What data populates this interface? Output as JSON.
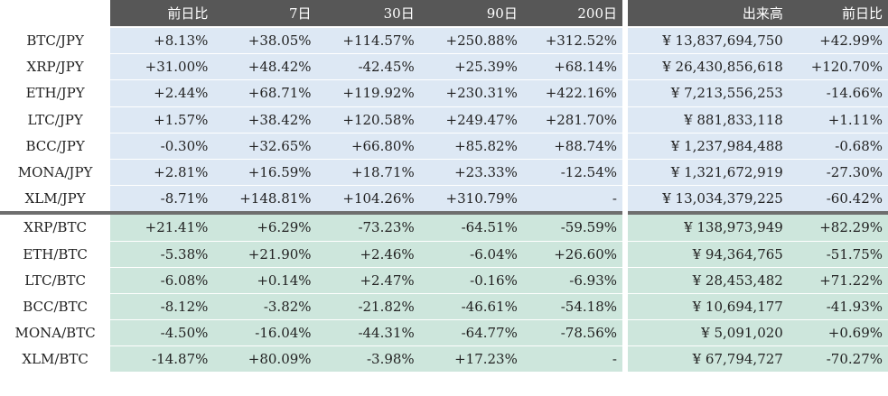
{
  "table": {
    "headers": [
      "前日比",
      "7日",
      "30日",
      "90日",
      "200日",
      "出来高",
      "前日比"
    ],
    "jpy_rows": [
      {
        "pair": "BTC/JPY",
        "d1": "+8.13%",
        "d7": "+38.05%",
        "d30": "+114.57%",
        "d90": "+250.88%",
        "d200": "+312.52%",
        "volume": "¥ 13,837,694,750",
        "vol_change": "+42.99%"
      },
      {
        "pair": "XRP/JPY",
        "d1": "+31.00%",
        "d7": "+48.42%",
        "d30": "-42.45%",
        "d90": "+25.39%",
        "d200": "+68.14%",
        "volume": "¥ 26,430,856,618",
        "vol_change": "+120.70%"
      },
      {
        "pair": "ETH/JPY",
        "d1": "+2.44%",
        "d7": "+68.71%",
        "d30": "+119.92%",
        "d90": "+230.31%",
        "d200": "+422.16%",
        "volume": "¥ 7,213,556,253",
        "vol_change": "-14.66%"
      },
      {
        "pair": "LTC/JPY",
        "d1": "+1.57%",
        "d7": "+38.42%",
        "d30": "+120.58%",
        "d90": "+249.47%",
        "d200": "+281.70%",
        "volume": "¥ 881,833,118",
        "vol_change": "+1.11%"
      },
      {
        "pair": "BCC/JPY",
        "d1": "-0.30%",
        "d7": "+32.65%",
        "d30": "+66.80%",
        "d90": "+85.82%",
        "d200": "+88.74%",
        "volume": "¥ 1,237,984,488",
        "vol_change": "-0.68%"
      },
      {
        "pair": "MONA/JPY",
        "d1": "+2.81%",
        "d7": "+16.59%",
        "d30": "+18.71%",
        "d90": "+23.33%",
        "d200": "-12.54%",
        "volume": "¥ 1,321,672,919",
        "vol_change": "-27.30%"
      },
      {
        "pair": "XLM/JPY",
        "d1": "-8.71%",
        "d7": "+148.81%",
        "d30": "+104.26%",
        "d90": "+310.79%",
        "d200": "-",
        "volume": "¥ 13,034,379,225",
        "vol_change": "-60.42%"
      }
    ],
    "btc_rows": [
      {
        "pair": "XRP/BTC",
        "d1": "+21.41%",
        "d7": "+6.29%",
        "d30": "-73.23%",
        "d90": "-64.51%",
        "d200": "-59.59%",
        "volume": "¥ 138,973,949",
        "vol_change": "+82.29%"
      },
      {
        "pair": "ETH/BTC",
        "d1": "-5.38%",
        "d7": "+21.90%",
        "d30": "+2.46%",
        "d90": "-6.04%",
        "d200": "+26.60%",
        "volume": "¥ 94,364,765",
        "vol_change": "-51.75%"
      },
      {
        "pair": "LTC/BTC",
        "d1": "-6.08%",
        "d7": "+0.14%",
        "d30": "+2.47%",
        "d90": "-0.16%",
        "d200": "-6.93%",
        "volume": "¥ 28,453,482",
        "vol_change": "+71.22%"
      },
      {
        "pair": "BCC/BTC",
        "d1": "-8.12%",
        "d7": "-3.82%",
        "d30": "-21.82%",
        "d90": "-46.61%",
        "d200": "-54.18%",
        "volume": "¥ 10,694,177",
        "vol_change": "-41.93%"
      },
      {
        "pair": "MONA/BTC",
        "d1": "-4.50%",
        "d7": "-16.04%",
        "d30": "-44.31%",
        "d90": "-64.77%",
        "d200": "-78.56%",
        "volume": "¥ 5,091,020",
        "vol_change": "+0.69%"
      },
      {
        "pair": "XLM/BTC",
        "d1": "-14.87%",
        "d7": "+80.09%",
        "d30": "-3.98%",
        "d90": "+17.23%",
        "d200": "-",
        "volume": "¥ 67,794,727",
        "vol_change": "-70.27%"
      }
    ]
  },
  "colors": {
    "header_bg": "#575757",
    "jpy_row_bg": "#dde8f4",
    "btc_row_bg": "#cde6dc",
    "group_divider": "#6e6e6e"
  }
}
